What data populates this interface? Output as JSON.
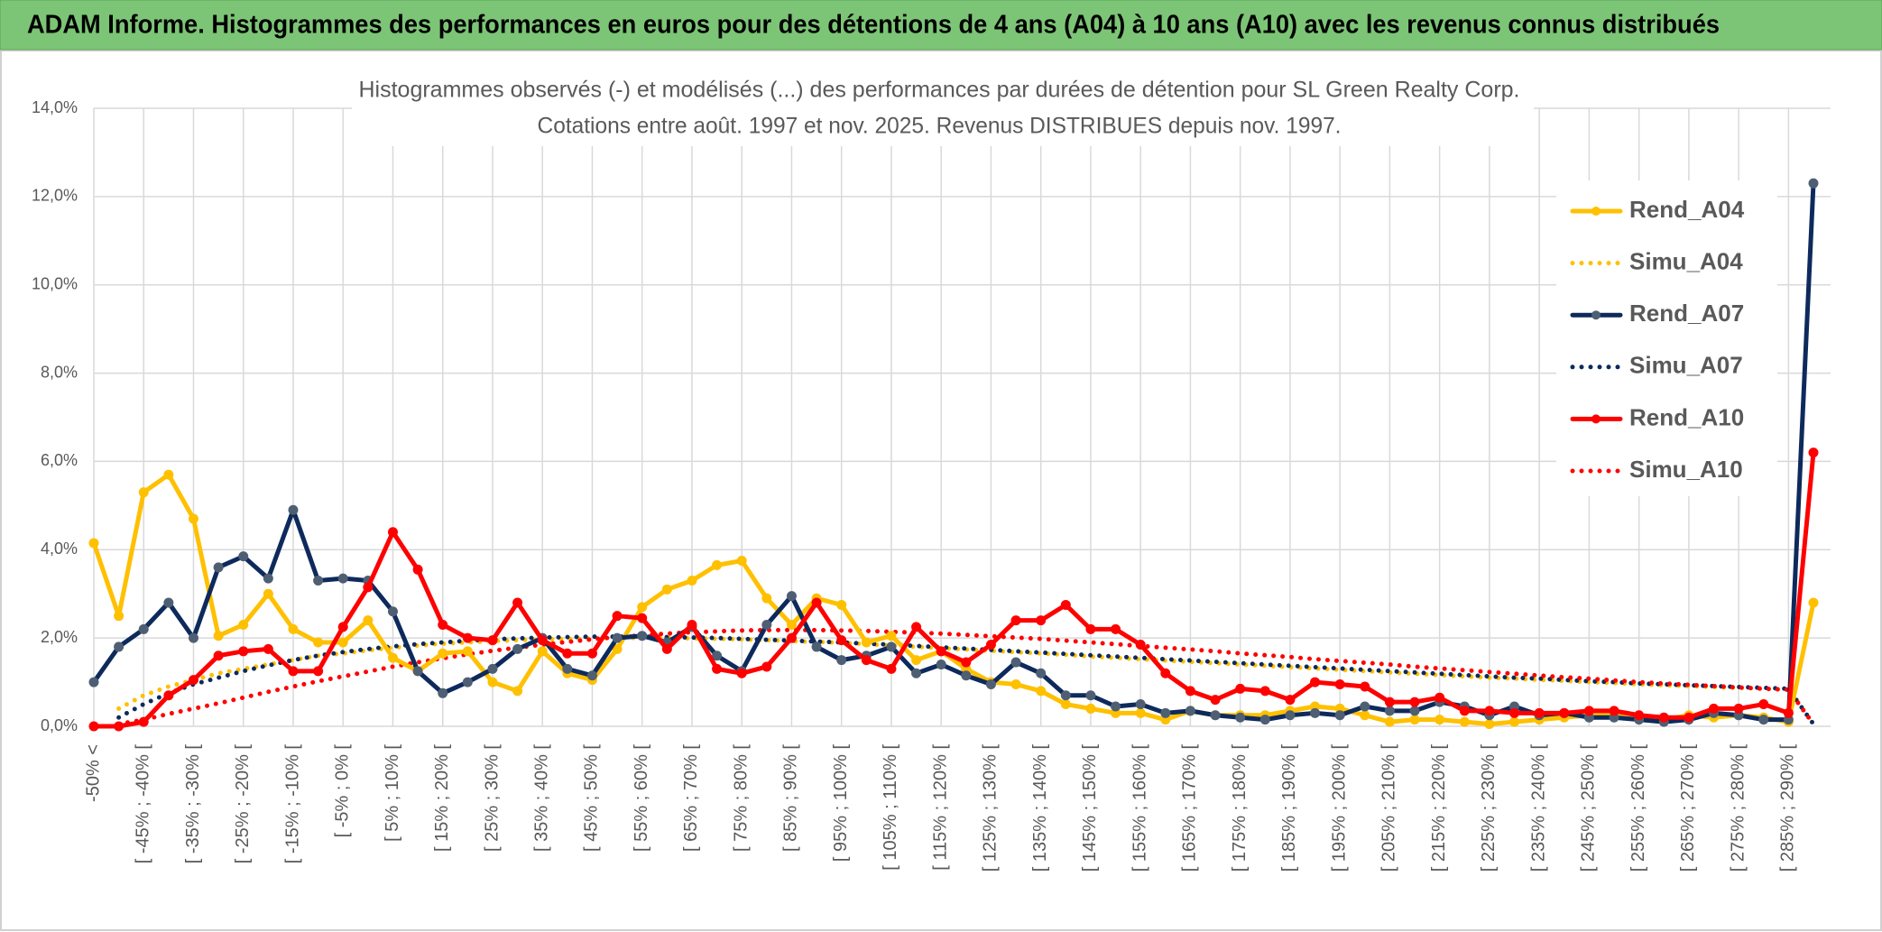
{
  "header": {
    "title": "ADAM Informe. Histogrammes des performances en euros pour des détentions de 4 ans (A04) à 10 ans (A10) avec les revenus connus distribués"
  },
  "chart_data": {
    "type": "line",
    "title": "Histogrammes observés (-) et modélisés (...) des performances par durées de détention pour SL Green Realty Corp.",
    "subtitle": "Cotations entre août. 1997 et nov. 2025. Revenus DISTRIBUES depuis nov. 1997.",
    "categories": [
      "-50% <",
      null,
      "[ -45% ; -40% [",
      null,
      "[ -35% ; -30% [",
      null,
      "[ -25% ; -20% [",
      null,
      "[ -15% ; -10% [",
      null,
      "[ -5% ; 0% [",
      null,
      "[ 5% ; 10% [",
      null,
      "[ 15% ; 20% [",
      null,
      "[ 25% ; 30% [",
      null,
      "[ 35% ; 40% [",
      null,
      "[ 45% ; 50% [",
      null,
      "[ 55% ; 60% [",
      null,
      "[ 65% ; 70% [",
      null,
      "[ 75% ; 80% [",
      null,
      "[ 85% ; 90% [",
      null,
      "[ 95% ; 100% [",
      null,
      "[ 105% ; 110% [",
      null,
      "[ 115% ; 120% [",
      null,
      "[ 125% ; 130% [",
      null,
      "[ 135% ; 140% [",
      null,
      "[ 145% ; 150% [",
      null,
      "[ 155% ; 160% [",
      null,
      "[ 165% ; 170% [",
      null,
      "[ 175% ; 180% [",
      null,
      "[ 185% ; 190% [",
      null,
      "[ 195% ; 200% [",
      null,
      "[ 205% ; 210% [",
      null,
      "[ 215% ; 220% [",
      null,
      "[ 225% ; 230% [",
      null,
      "[ 235% ; 240% [",
      null,
      "[ 245% ; 250% [",
      null,
      "[ 255% ; 260% [",
      null,
      "[ 265% ; 270% [",
      null,
      "[ 275% ; 280% [",
      null,
      "[ 285% ; 290% [",
      null
    ],
    "series": [
      {
        "name": "Rend_A04",
        "color": "#ffc000",
        "line_style": "solid",
        "markers": true,
        "values": [
          4.15,
          2.5,
          5.3,
          5.7,
          4.7,
          2.05,
          2.3,
          3.0,
          2.2,
          1.9,
          1.9,
          2.4,
          1.55,
          1.25,
          1.65,
          1.7,
          1.0,
          0.8,
          1.7,
          1.2,
          1.05,
          1.75,
          2.7,
          3.1,
          3.3,
          3.65,
          3.75,
          2.9,
          2.3,
          2.9,
          2.75,
          1.9,
          2.05,
          1.5,
          1.7,
          1.3,
          1.0,
          0.95,
          0.8,
          0.5,
          0.4,
          0.3,
          0.3,
          0.15,
          0.35,
          0.25,
          0.25,
          0.25,
          0.35,
          0.45,
          0.4,
          0.25,
          0.1,
          0.15,
          0.15,
          0.1,
          0.05,
          0.1,
          0.15,
          0.2,
          0.25,
          0.3,
          0.2,
          0.15,
          0.25,
          0.2,
          0.25,
          0.2,
          0.1,
          2.8
        ]
      },
      {
        "name": "Simu_A04",
        "color": "#ffc000",
        "line_style": "dotted",
        "markers": false,
        "values": [
          null,
          0.4,
          0.7,
          0.9,
          1.05,
          1.2,
          1.3,
          1.4,
          1.5,
          1.6,
          1.65,
          1.72,
          1.78,
          1.83,
          1.87,
          1.9,
          1.93,
          1.95,
          1.97,
          1.98,
          1.99,
          2.0,
          2.0,
          2.0,
          1.99,
          1.98,
          1.97,
          1.95,
          1.93,
          1.91,
          1.89,
          1.86,
          1.83,
          1.8,
          1.77,
          1.74,
          1.71,
          1.68,
          1.65,
          1.62,
          1.58,
          1.55,
          1.52,
          1.49,
          1.46,
          1.43,
          1.4,
          1.37,
          1.34,
          1.31,
          1.28,
          1.25,
          1.22,
          1.19,
          1.16,
          1.13,
          1.1,
          1.08,
          1.05,
          1.03,
          1.0,
          0.98,
          0.95,
          0.93,
          0.91,
          0.89,
          0.87,
          0.85,
          0.83,
          0.05
        ]
      },
      {
        "name": "Rend_A07",
        "color": "#0e2a5c",
        "marker_color": "#4f5f73",
        "line_style": "solid",
        "markers": true,
        "values": [
          1.0,
          1.8,
          2.2,
          2.8,
          2.0,
          3.6,
          3.85,
          3.35,
          4.9,
          3.3,
          3.35,
          3.3,
          2.6,
          1.25,
          0.75,
          1.0,
          1.3,
          1.75,
          2.0,
          1.3,
          1.15,
          2.0,
          2.05,
          1.9,
          2.25,
          1.6,
          1.25,
          2.3,
          2.95,
          1.8,
          1.5,
          1.6,
          1.8,
          1.2,
          1.4,
          1.15,
          0.95,
          1.45,
          1.2,
          0.7,
          0.7,
          0.45,
          0.5,
          0.3,
          0.35,
          0.25,
          0.2,
          0.15,
          0.25,
          0.3,
          0.25,
          0.45,
          0.35,
          0.35,
          0.55,
          0.45,
          0.25,
          0.45,
          0.25,
          0.3,
          0.2,
          0.2,
          0.15,
          0.1,
          0.15,
          0.3,
          0.25,
          0.15,
          0.15,
          12.3
        ]
      },
      {
        "name": "Simu_A07",
        "color": "#0e2a5c",
        "line_style": "dotted",
        "markers": false,
        "values": [
          null,
          0.2,
          0.5,
          0.75,
          0.95,
          1.1,
          1.25,
          1.38,
          1.5,
          1.6,
          1.68,
          1.75,
          1.81,
          1.86,
          1.9,
          1.94,
          1.97,
          1.99,
          2.01,
          2.02,
          2.03,
          2.03,
          2.03,
          2.02,
          2.01,
          2.0,
          1.98,
          1.96,
          1.94,
          1.92,
          1.9,
          1.87,
          1.85,
          1.82,
          1.79,
          1.76,
          1.73,
          1.7,
          1.67,
          1.64,
          1.61,
          1.58,
          1.55,
          1.52,
          1.49,
          1.46,
          1.43,
          1.4,
          1.37,
          1.34,
          1.31,
          1.28,
          1.25,
          1.22,
          1.19,
          1.16,
          1.13,
          1.1,
          1.08,
          1.05,
          1.02,
          1.0,
          0.97,
          0.95,
          0.93,
          0.91,
          0.89,
          0.87,
          0.85,
          0.05
        ]
      },
      {
        "name": "Rend_A10",
        "color": "#ff0000",
        "line_style": "solid",
        "markers": true,
        "values": [
          0.0,
          0.0,
          0.1,
          0.7,
          1.05,
          1.6,
          1.7,
          1.75,
          1.25,
          1.25,
          2.25,
          3.15,
          4.4,
          3.55,
          2.3,
          2.0,
          1.95,
          2.8,
          1.95,
          1.65,
          1.65,
          2.5,
          2.45,
          1.75,
          2.3,
          1.3,
          1.2,
          1.35,
          2.0,
          2.8,
          1.95,
          1.5,
          1.3,
          2.25,
          1.7,
          1.45,
          1.85,
          2.4,
          2.4,
          2.75,
          2.2,
          2.2,
          1.85,
          1.2,
          0.8,
          0.6,
          0.85,
          0.8,
          0.6,
          1.0,
          0.95,
          0.9,
          0.55,
          0.55,
          0.65,
          0.35,
          0.35,
          0.3,
          0.3,
          0.3,
          0.35,
          0.35,
          0.25,
          0.2,
          0.2,
          0.4,
          0.4,
          0.5,
          0.3,
          6.2
        ]
      },
      {
        "name": "Simu_A10",
        "color": "#ff0000",
        "line_style": "dotted",
        "markers": false,
        "values": [
          null,
          0.05,
          0.15,
          0.28,
          0.4,
          0.52,
          0.65,
          0.78,
          0.9,
          1.02,
          1.13,
          1.24,
          1.35,
          1.45,
          1.54,
          1.63,
          1.71,
          1.78,
          1.85,
          1.91,
          1.97,
          2.02,
          2.06,
          2.1,
          2.13,
          2.15,
          2.17,
          2.18,
          2.18,
          2.18,
          2.17,
          2.16,
          2.14,
          2.12,
          2.1,
          2.07,
          2.04,
          2.01,
          1.98,
          1.94,
          1.9,
          1.86,
          1.82,
          1.78,
          1.74,
          1.7,
          1.65,
          1.61,
          1.57,
          1.52,
          1.48,
          1.44,
          1.4,
          1.35,
          1.31,
          1.27,
          1.23,
          1.19,
          1.15,
          1.11,
          1.08,
          1.04,
          1.0,
          0.97,
          0.94,
          0.91,
          0.88,
          0.85,
          0.83,
          0.05
        ]
      }
    ],
    "ylim": [
      0,
      14
    ],
    "yticks": [
      {
        "value": 0,
        "label": "0,0%"
      },
      {
        "value": 2,
        "label": "2,0%"
      },
      {
        "value": 4,
        "label": "4,0%"
      },
      {
        "value": 6,
        "label": "6,0%"
      },
      {
        "value": 8,
        "label": "8,0%"
      },
      {
        "value": 10,
        "label": "10,0%"
      },
      {
        "value": 12,
        "label": "12,0%"
      },
      {
        "value": 14,
        "label": "14,0%"
      }
    ],
    "grid": true,
    "legend": "right"
  }
}
